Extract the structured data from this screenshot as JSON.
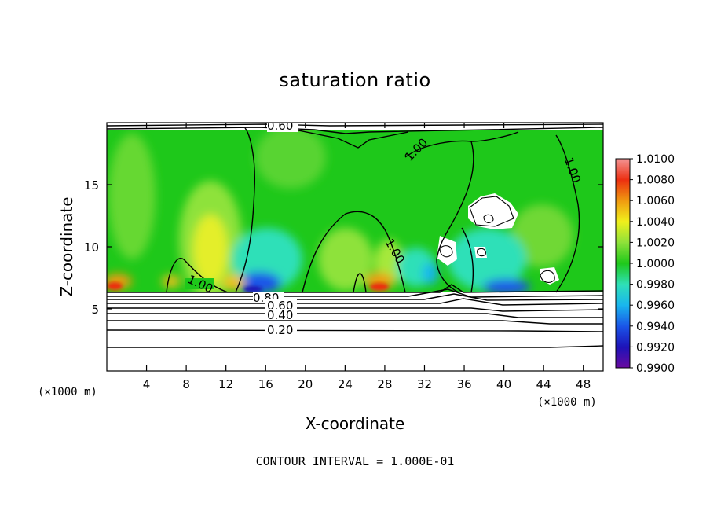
{
  "chart_data": {
    "type": "heatmap",
    "title": "saturation ratio",
    "xlabel": "X-coordinate",
    "ylabel": "Z-coordinate",
    "x_unit": "(×1000 m)",
    "y_unit": "(×1000 m)",
    "xlim": [
      0,
      50
    ],
    "ylim": [
      0,
      20
    ],
    "x_ticks": [
      4,
      8,
      12,
      16,
      20,
      24,
      28,
      32,
      36,
      40,
      44,
      48
    ],
    "y_ticks": [
      5,
      10,
      15
    ],
    "grid": false,
    "colorbar": {
      "min": 0.99,
      "max": 1.01,
      "levels": [
        "0.9900",
        "0.9920",
        "0.9940",
        "0.9960",
        "0.9980",
        "1.0000",
        "1.0020",
        "1.0040",
        "1.0060",
        "1.0080",
        "1.0100"
      ],
      "colors": [
        "#6a0aa0",
        "#1d12b8",
        "#1a55e8",
        "#19b6ee",
        "#2fe0b8",
        "#1ec81a",
        "#8ee23a",
        "#f0f01c",
        "#f09a10",
        "#ec2e10",
        "#f49494"
      ]
    },
    "contour_labels": [
      "0.80",
      "0.60",
      "0.40",
      "0.20",
      "1.00"
    ],
    "contour_interval": "CONTOUR INTERVAL = 1.000E-01"
  }
}
